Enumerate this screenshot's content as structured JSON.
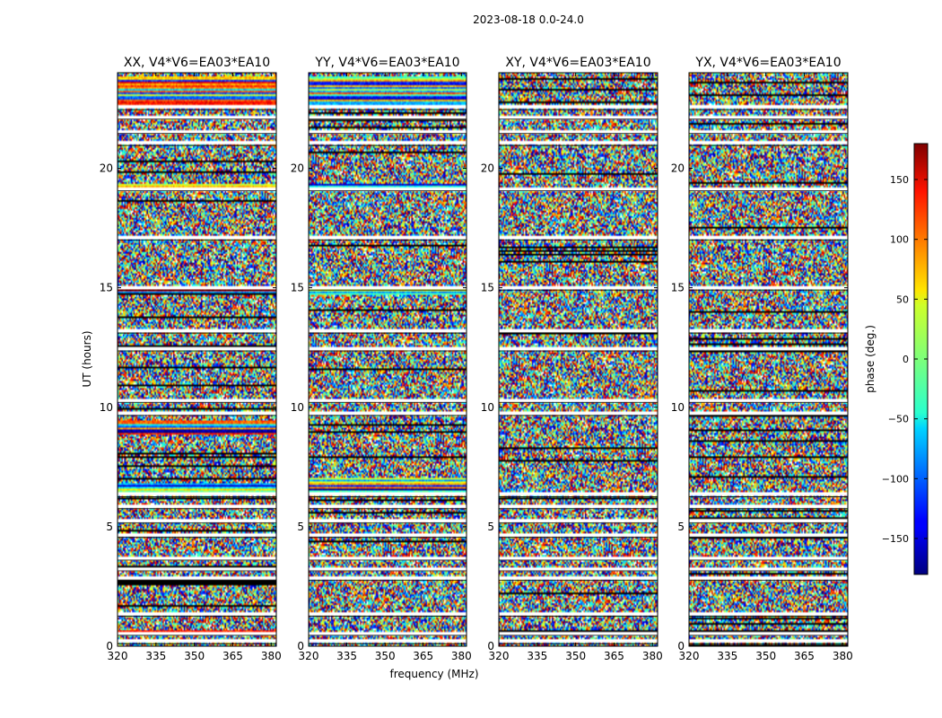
{
  "figure": {
    "suptitle": "2023-08-18 0.0-24.0",
    "xlabel": "frequency (MHz)",
    "ylabel": "UT (hours)"
  },
  "chart_data": {
    "type": "heatmap",
    "title": "2023-08-18 0.0-24.0",
    "xlabel": "frequency (MHz)",
    "ylabel": "UT (hours)",
    "xlim": [
      320,
      382
    ],
    "ylim": [
      0,
      24
    ],
    "xticks": [
      320,
      335,
      350,
      365,
      380
    ],
    "yticks": [
      0,
      5,
      10,
      15,
      20
    ],
    "colorbar": {
      "label": "phase (deg.)",
      "range": [
        -180,
        180
      ],
      "ticks": [
        150,
        100,
        50,
        0,
        -50,
        -100,
        -150
      ],
      "tick_labels": [
        "150",
        "100",
        "50",
        "0",
        "−50",
        "−100",
        "−150"
      ],
      "colormap": "jet"
    },
    "panels": [
      {
        "title": "XX, V4*V6=EA03*EA10",
        "polarization": "XX"
      },
      {
        "title": "YY, V4*V6=EA03*EA10",
        "polarization": "YY"
      },
      {
        "title": "XY, V4*V6=EA03*EA10",
        "polarization": "XY"
      },
      {
        "title": "YX, V4*V6=EA03*EA10",
        "polarization": "YX"
      }
    ],
    "flagged_ut_hours": [
      0.2,
      0.55,
      1.35,
      2.85,
      3.25,
      3.7,
      4.65,
      5.25,
      5.85,
      6.35,
      9.75,
      10.3,
      12.45,
      13.2,
      15.0,
      17.1,
      19.15,
      21.05,
      21.55,
      22.15,
      22.55
    ],
    "coherent_bands": {
      "XX": [
        0.55,
        6.45,
        6.7,
        9.0,
        9.3,
        14.9,
        19.2,
        22.8,
        23.1,
        23.4,
        23.7
      ],
      "YY": [
        6.45,
        6.7,
        6.9,
        14.8,
        19.2,
        22.8,
        23.1,
        23.4,
        23.7
      ]
    }
  }
}
